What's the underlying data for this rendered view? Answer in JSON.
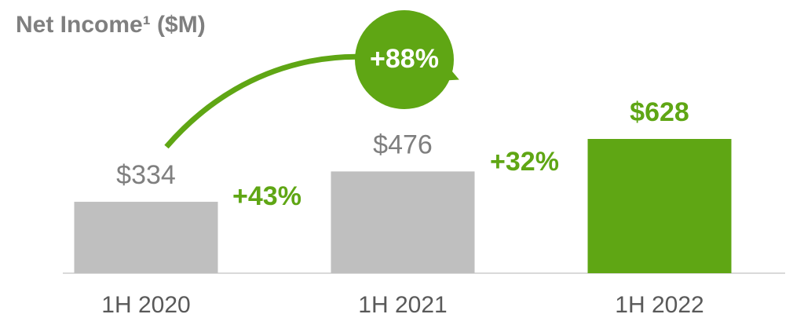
{
  "chart_data": {
    "type": "bar",
    "title": "Net Income¹ ($M)",
    "categories": [
      "1H 2020",
      "1H 2021",
      "1H 2022"
    ],
    "values": [
      334,
      476,
      628
    ],
    "value_labels": [
      "$334",
      "$476",
      "$628"
    ],
    "colors": [
      "#bfbfbf",
      "#bfbfbf",
      "#5fa614"
    ],
    "annotations": [
      "+43%",
      "+32%",
      "+88%"
    ]
  }
}
